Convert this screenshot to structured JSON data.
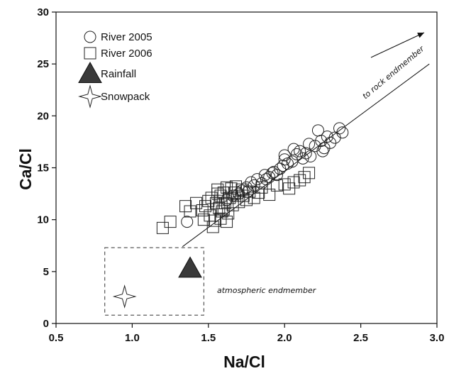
{
  "chart_data": {
    "type": "scatter",
    "xlabel": "Na/Cl",
    "ylabel": "Ca/Cl",
    "xlim": [
      0.5,
      3.0
    ],
    "ylim": [
      0,
      30
    ],
    "xticks": [
      "0.5",
      "1.0",
      "1.5",
      "2.0",
      "2.5",
      "3.0"
    ],
    "yticks": [
      "0",
      "5",
      "10",
      "15",
      "20",
      "25",
      "30"
    ],
    "grid": false,
    "legend_position": "top-left",
    "series": [
      {
        "name": "River 2005",
        "marker": "circle",
        "points": [
          [
            1.36,
            9.8
          ],
          [
            1.62,
            11.9
          ],
          [
            1.66,
            12.3
          ],
          [
            1.7,
            12.5
          ],
          [
            1.72,
            12.8
          ],
          [
            1.75,
            13.1
          ],
          [
            1.78,
            13.6
          ],
          [
            1.8,
            13.3
          ],
          [
            1.82,
            13.9
          ],
          [
            1.85,
            13.5
          ],
          [
            1.87,
            14.3
          ],
          [
            1.9,
            14.1
          ],
          [
            1.92,
            14.5
          ],
          [
            1.93,
            14.6
          ],
          [
            1.95,
            14.3
          ],
          [
            1.97,
            14.9
          ],
          [
            1.99,
            15.2
          ],
          [
            2.0,
            15.8
          ],
          [
            2.0,
            16.2
          ],
          [
            2.02,
            15.4
          ],
          [
            2.05,
            15.6
          ],
          [
            2.06,
            16.8
          ],
          [
            2.08,
            16.3
          ],
          [
            2.1,
            16.6
          ],
          [
            2.12,
            15.9
          ],
          [
            2.14,
            16.4
          ],
          [
            2.16,
            17.3
          ],
          [
            2.17,
            16.1
          ],
          [
            2.2,
            17.1
          ],
          [
            2.22,
            18.6
          ],
          [
            2.24,
            17.6
          ],
          [
            2.25,
            16.6
          ],
          [
            2.26,
            16.9
          ],
          [
            2.28,
            18.0
          ],
          [
            2.3,
            17.4
          ],
          [
            2.33,
            17.9
          ],
          [
            2.36,
            18.8
          ],
          [
            2.38,
            18.4
          ],
          [
            1.76,
            12.7
          ],
          [
            1.88,
            13.9
          ]
        ]
      },
      {
        "name": "River 2006",
        "marker": "square",
        "points": [
          [
            1.2,
            9.2
          ],
          [
            1.25,
            9.8
          ],
          [
            1.35,
            11.3
          ],
          [
            1.38,
            10.8
          ],
          [
            1.42,
            11.6
          ],
          [
            1.46,
            10.9
          ],
          [
            1.48,
            11.3
          ],
          [
            1.5,
            11.8
          ],
          [
            1.51,
            10.4
          ],
          [
            1.52,
            12.1
          ],
          [
            1.53,
            9.3
          ],
          [
            1.54,
            9.9
          ],
          [
            1.55,
            11.6
          ],
          [
            1.56,
            12.5
          ],
          [
            1.57,
            11.1
          ],
          [
            1.58,
            12.3
          ],
          [
            1.59,
            10.8
          ],
          [
            1.6,
            12.6
          ],
          [
            1.61,
            11.6
          ],
          [
            1.62,
            13.1
          ],
          [
            1.63,
            10.6
          ],
          [
            1.64,
            12.1
          ],
          [
            1.65,
            13.0
          ],
          [
            1.66,
            11.4
          ],
          [
            1.67,
            12.6
          ],
          [
            1.68,
            13.2
          ],
          [
            1.69,
            12.3
          ],
          [
            1.7,
            11.7
          ],
          [
            1.72,
            12.9
          ],
          [
            1.73,
            12.3
          ],
          [
            1.75,
            11.9
          ],
          [
            1.77,
            12.7
          ],
          [
            1.8,
            12.1
          ],
          [
            1.83,
            12.6
          ],
          [
            1.85,
            13.1
          ],
          [
            1.9,
            12.4
          ],
          [
            1.95,
            13.3
          ],
          [
            2.0,
            13.4
          ],
          [
            2.03,
            13.0
          ],
          [
            2.06,
            13.6
          ],
          [
            2.1,
            13.8
          ],
          [
            2.13,
            14.1
          ],
          [
            2.16,
            14.5
          ],
          [
            1.58,
            10.1
          ],
          [
            1.47,
            10.0
          ],
          [
            1.6,
            11.0
          ],
          [
            1.56,
            12.9
          ],
          [
            1.62,
            9.8
          ]
        ]
      },
      {
        "name": "Rainfall",
        "marker": "filled-triangle",
        "color": "#3a3a3a",
        "points": [
          [
            1.38,
            5.3
          ]
        ]
      },
      {
        "name": "Snowpack",
        "marker": "four-point-star",
        "points": [
          [
            0.95,
            2.6
          ]
        ]
      }
    ],
    "trend_line": {
      "points": [
        [
          1.33,
          7.4
        ],
        [
          2.95,
          25.0
        ]
      ]
    },
    "annotations": {
      "rock_endmember": "to rock endmember",
      "atmospheric_endmember": "atmospheric endmember"
    },
    "endmember_box": {
      "x": [
        0.82,
        1.47
      ],
      "y": [
        0.8,
        7.3
      ]
    }
  }
}
